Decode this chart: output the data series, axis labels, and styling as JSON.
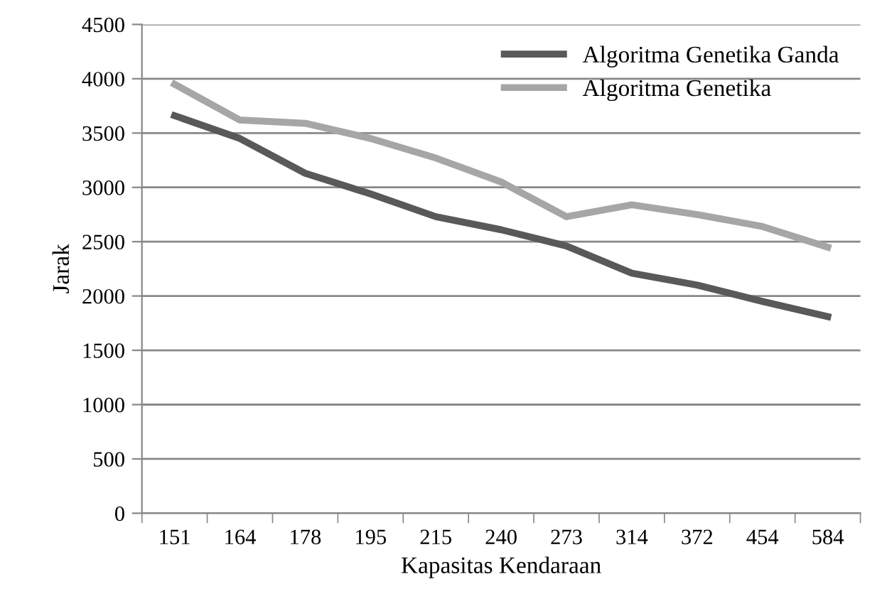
{
  "chart_data": {
    "type": "line",
    "xlabel": "Kapasitas Kendaraan",
    "ylabel": "Jarak",
    "categories": [
      "151",
      "164",
      "178",
      "195",
      "215",
      "240",
      "273",
      "314",
      "372",
      "454",
      "584"
    ],
    "series": [
      {
        "name": "Algoritma Genetika Ganda",
        "color": "#595959",
        "values": [
          3660,
          3450,
          3130,
          2940,
          2730,
          2610,
          2460,
          2210,
          2100,
          1950,
          1810
        ]
      },
      {
        "name": "Algoritma Genetika",
        "color": "#a6a6a6",
        "values": [
          3950,
          3620,
          3590,
          3450,
          3270,
          3050,
          2730,
          2840,
          2750,
          2640,
          2450
        ]
      }
    ],
    "ylim": [
      0,
      4500
    ],
    "yticks": [
      0,
      500,
      1000,
      1500,
      2000,
      2500,
      3000,
      3500,
      4000,
      4500
    ],
    "grid": "y",
    "legend": "top right",
    "marker": "none",
    "line_style": "solid"
  }
}
